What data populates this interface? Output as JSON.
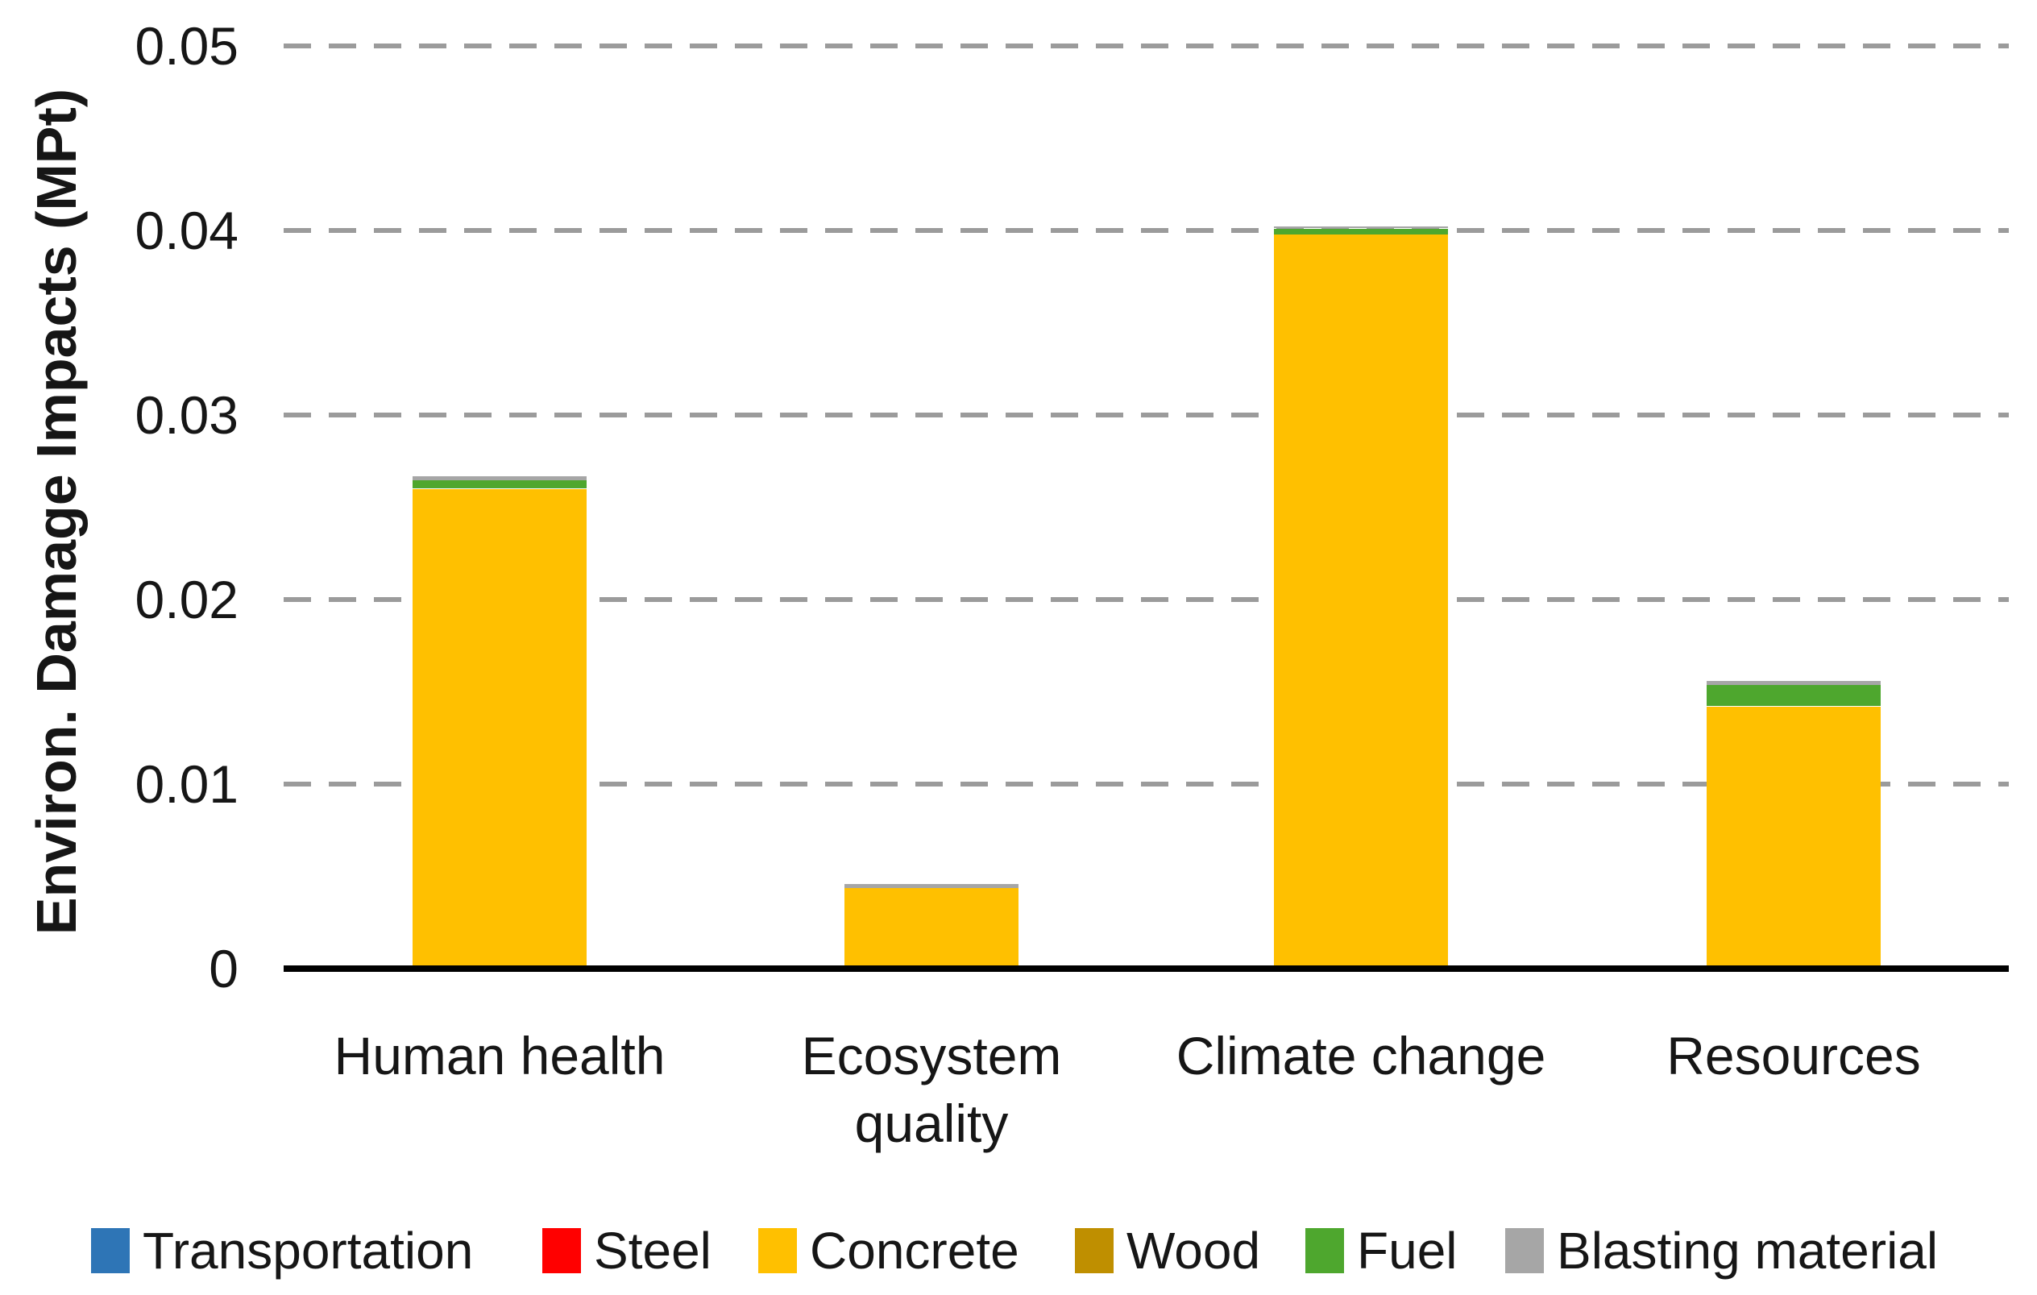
{
  "chart_data": {
    "type": "bar",
    "stacked": true,
    "title": "",
    "xlabel": "",
    "ylabel": "Environ. Damage Impacts (MPt)",
    "ylim": [
      0,
      0.05
    ],
    "ytick_step": 0.01,
    "ytick_labels": [
      "0",
      "0.01",
      "0.02",
      "0.03",
      "0.04",
      "0.05"
    ],
    "grid": "horizontal-dashed",
    "grid_color": "#9b9b9b",
    "axis_line_color": "#000000",
    "legend_position": "bottom",
    "categories": [
      "Human health",
      "Ecosystem quality",
      "Climate change",
      "Resources"
    ],
    "category_display": [
      "Human health",
      "Ecosystem\nquality",
      "Climate change",
      "Resources"
    ],
    "series": [
      {
        "name": "Transportation",
        "color": "#2E75B6",
        "values": [
          0,
          0,
          0,
          0
        ]
      },
      {
        "name": "Steel",
        "color": "#FF0000",
        "values": [
          0,
          0,
          0,
          0
        ]
      },
      {
        "name": "Concrete",
        "color": "#FFC000",
        "values": [
          0.026,
          0.0044,
          0.0398,
          0.0142
        ]
      },
      {
        "name": "Wood",
        "color": "#BF8F00",
        "values": [
          0,
          0,
          0,
          0
        ]
      },
      {
        "name": "Fuel",
        "color": "#4EA72E",
        "values": [
          0.0005,
          0.0,
          0.0003,
          0.0012
        ]
      },
      {
        "name": "Blasting material",
        "color": "#A6A6A6",
        "values": [
          0.0002,
          0.0002,
          0.0001,
          0.0002
        ]
      }
    ],
    "stack_totals": [
      0.0267,
      0.0046,
      0.0402,
      0.0156
    ]
  }
}
